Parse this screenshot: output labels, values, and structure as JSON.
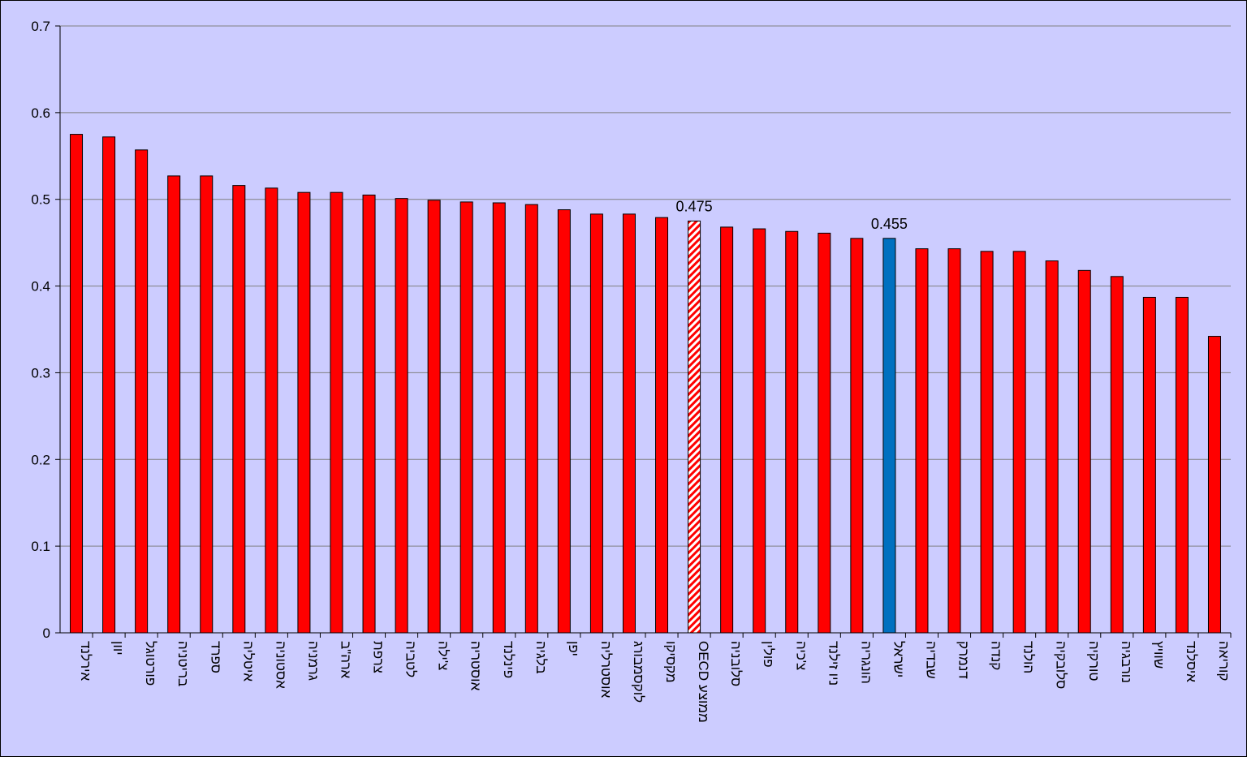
{
  "chart_data": {
    "type": "bar",
    "title": "",
    "xlabel": "",
    "ylabel": "",
    "ylim": [
      0,
      0.7
    ],
    "yticks": [
      "0",
      "0.1",
      "0.2",
      "0.3",
      "0.4",
      "0.5",
      "0.6",
      "0.7"
    ],
    "grid": true,
    "categories": [
      "אירלנד",
      "יוון",
      "פורטוגל",
      "בריטניה",
      "ספרד",
      "איטליה",
      "אסטוניה",
      "גרמניה",
      "ארה\"ב",
      "צרפת",
      "לטביה",
      "צ'ילה",
      "אוסטריה",
      "פינלנד",
      "בלגיה",
      "יפן",
      "אוסטרליה",
      "לוקסמבורג",
      "מקסיקו",
      "ממוצע OECD",
      "סלובניה",
      "פולין",
      "צ'כיה",
      "ניו זילנד",
      "הונגריה",
      "ישראל",
      "שבדיה",
      "דנמרק",
      "קנדה",
      "הולנד",
      "סלובקיה",
      "טורקיה",
      "נורבגיה",
      "שוויץ",
      "איסלנד",
      "קוריאה"
    ],
    "values": [
      0.575,
      0.572,
      0.557,
      0.527,
      0.527,
      0.516,
      0.513,
      0.508,
      0.508,
      0.505,
      0.501,
      0.499,
      0.497,
      0.496,
      0.494,
      0.488,
      0.483,
      0.483,
      0.479,
      0.475,
      0.468,
      0.466,
      0.463,
      0.461,
      0.455,
      0.455,
      0.443,
      0.443,
      0.44,
      0.44,
      0.429,
      0.418,
      0.411,
      0.387,
      0.387,
      0.342
    ],
    "data_labels": [
      {
        "index": 19,
        "text": "0.475"
      },
      {
        "index": 25,
        "text": "0.455"
      }
    ],
    "highlight": {
      "oecd_index": 19,
      "israel_index": 25
    },
    "colors": {
      "bar": "#ff0000",
      "israel": "#0070c0",
      "oecd_stripe": "#ff0000",
      "oecd_base": "#ffffff",
      "plot_bg": "#ccccff",
      "gridline": "#808080",
      "outline": "#000000"
    }
  }
}
